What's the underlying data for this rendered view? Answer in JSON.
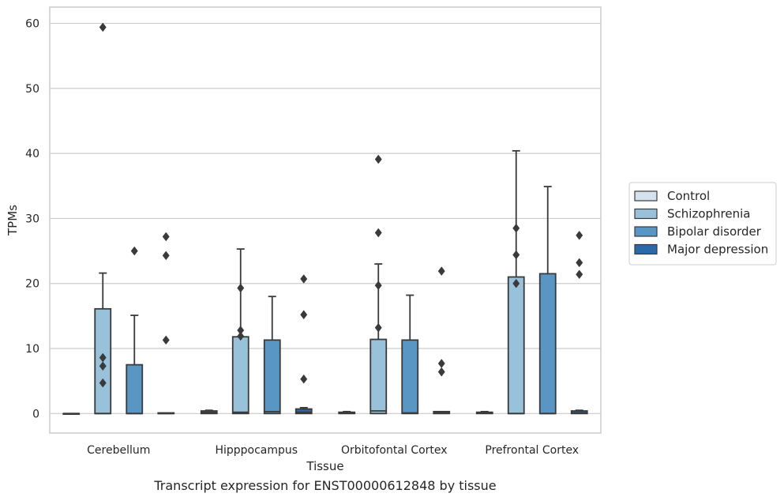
{
  "caption": "Transcript expression for ENST00000612848 by tissue",
  "colors": {
    "Control": "#d4e2ef",
    "Schizophrenia": "#99c1da",
    "Bipolar disorder": "#5a96c3",
    "Major depression": "#2a6aa8",
    "grid": "#cccccc",
    "box_edge": "#3a3a3a"
  },
  "chart_data": {
    "type": "box",
    "xlabel": "Tissue",
    "ylabel": "TPMs",
    "ylim": [
      -3,
      62.5
    ],
    "yticks": [
      0,
      10,
      20,
      30,
      40,
      50,
      60
    ],
    "categories": [
      "Cerebellum",
      "Hipppocampus",
      "Orbitofontal Cortex",
      "Prefrontal Cortex"
    ],
    "grid": "horizontal",
    "legend_position": "right",
    "series": [
      {
        "name": "Control",
        "boxes": [
          {
            "q1": 0,
            "median": 0,
            "q3": 0,
            "whisker_low": 0,
            "whisker_high": 0,
            "outliers": []
          },
          {
            "q1": 0,
            "median": 0.2,
            "q3": 0.4,
            "whisker_low": 0,
            "whisker_high": 0.5,
            "outliers": []
          },
          {
            "q1": 0,
            "median": 0.1,
            "q3": 0.2,
            "whisker_low": 0,
            "whisker_high": 0.3,
            "outliers": []
          },
          {
            "q1": 0,
            "median": 0.1,
            "q3": 0.2,
            "whisker_low": 0,
            "whisker_high": 0.3,
            "outliers": []
          }
        ]
      },
      {
        "name": "Schizophrenia",
        "boxes": [
          {
            "q1": 0,
            "median": 0,
            "q3": 16.1,
            "whisker_low": 0,
            "whisker_high": 21.6,
            "outliers": [
              59.4,
              8.6,
              7.3,
              4.7
            ]
          },
          {
            "q1": 0,
            "median": 0.2,
            "q3": 11.8,
            "whisker_low": 0,
            "whisker_high": 25.3,
            "outliers": [
              19.3,
              12.8,
              11.9
            ]
          },
          {
            "q1": 0,
            "median": 0.4,
            "q3": 11.4,
            "whisker_low": 0,
            "whisker_high": 23.0,
            "outliers": [
              39.1,
              27.8,
              19.7,
              13.2
            ]
          },
          {
            "q1": 0,
            "median": 0,
            "q3": 21.0,
            "whisker_low": 0,
            "whisker_high": 40.4,
            "outliers": [
              28.5,
              24.4,
              20.0
            ]
          }
        ]
      },
      {
        "name": "Bipolar disorder",
        "boxes": [
          {
            "q1": 0,
            "median": 0,
            "q3": 7.5,
            "whisker_low": 0,
            "whisker_high": 15.1,
            "outliers": [
              25.0
            ]
          },
          {
            "q1": 0,
            "median": 0.3,
            "q3": 11.3,
            "whisker_low": 0,
            "whisker_high": 18.0,
            "outliers": []
          },
          {
            "q1": 0,
            "median": 0.1,
            "q3": 11.3,
            "whisker_low": 0,
            "whisker_high": 18.2,
            "outliers": []
          },
          {
            "q1": 0,
            "median": 0,
            "q3": 21.5,
            "whisker_low": 0,
            "whisker_high": 34.9,
            "outliers": []
          }
        ]
      },
      {
        "name": "Major depression",
        "boxes": [
          {
            "q1": 0,
            "median": 0,
            "q3": 0.1,
            "whisker_low": 0,
            "whisker_high": 0.1,
            "outliers": [
              27.2,
              24.3,
              11.3
            ]
          },
          {
            "q1": 0,
            "median": 0.2,
            "q3": 0.7,
            "whisker_low": 0,
            "whisker_high": 0.9,
            "outliers": [
              20.7,
              15.2,
              5.3
            ]
          },
          {
            "q1": 0,
            "median": 0.1,
            "q3": 0.3,
            "whisker_low": 0,
            "whisker_high": 0.3,
            "outliers": [
              21.9,
              7.7,
              6.4
            ]
          },
          {
            "q1": 0,
            "median": 0.1,
            "q3": 0.4,
            "whisker_low": 0,
            "whisker_high": 0.5,
            "outliers": [
              27.4,
              23.2,
              21.4
            ]
          }
        ]
      }
    ]
  }
}
